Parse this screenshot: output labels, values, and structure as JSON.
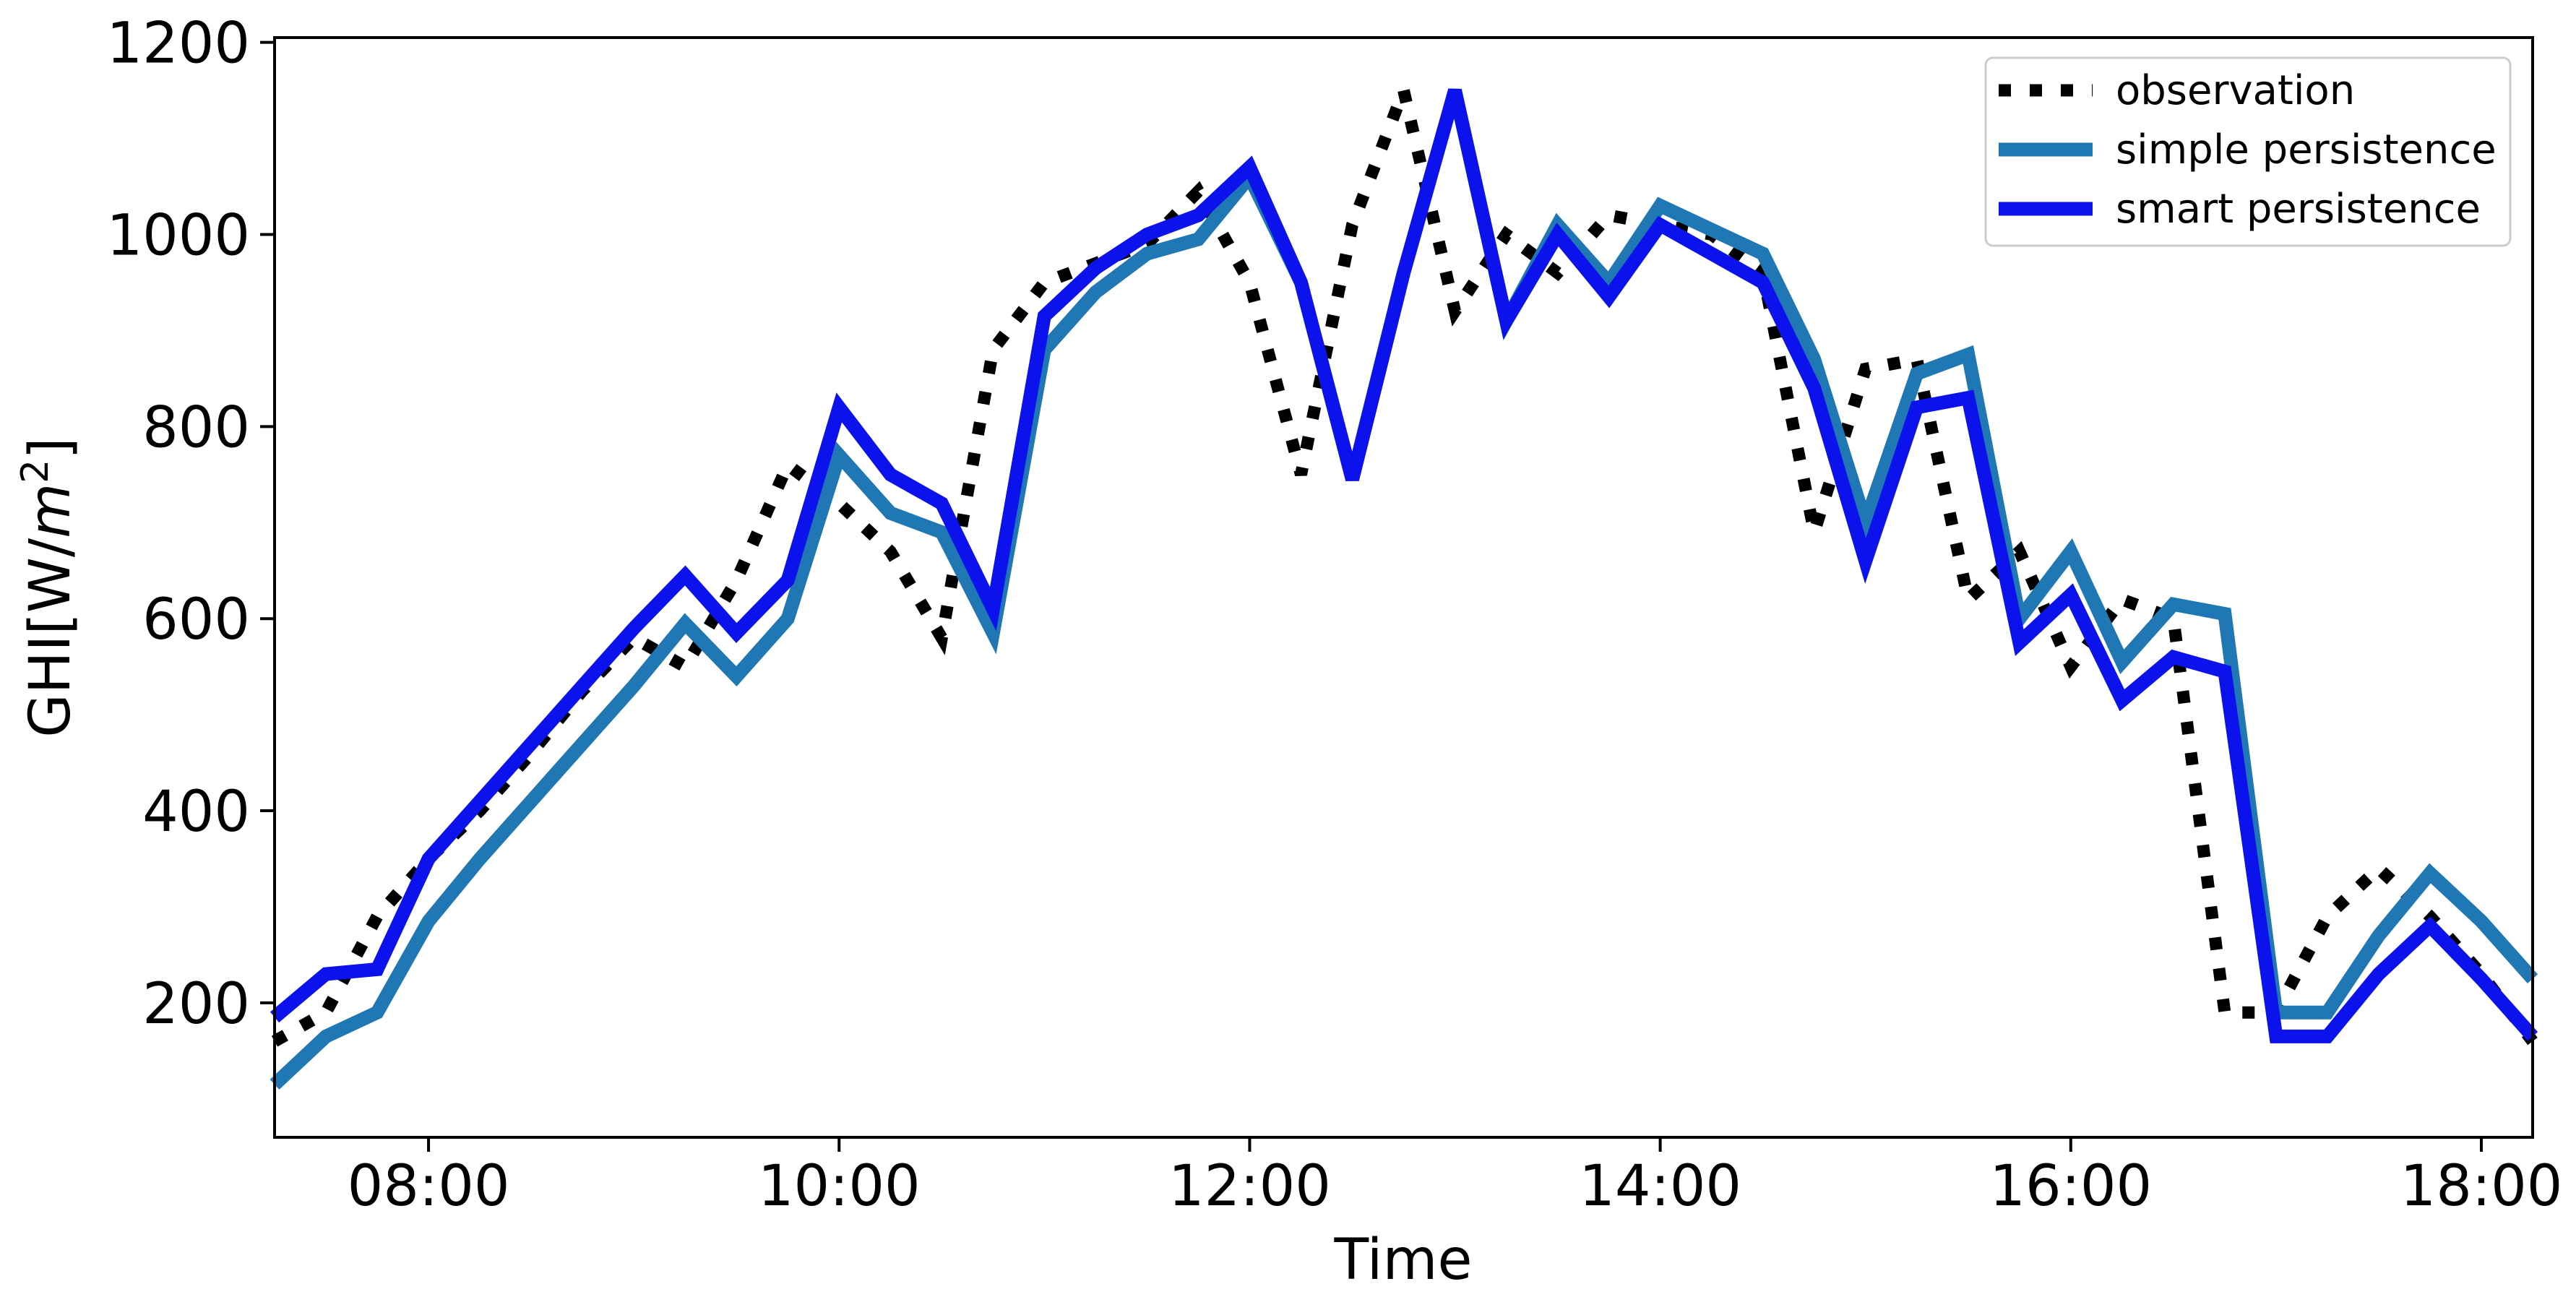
{
  "chart_data": {
    "type": "line",
    "xlabel": "Time",
    "ylabel": "GHI[W/m²]",
    "ylabel_parts": {
      "base": "GHI[W/",
      "italic": "m",
      "sup": "2",
      "close": "]"
    },
    "xlim": [
      "07:15",
      "18:15"
    ],
    "ylim": [
      60,
      1205
    ],
    "x_ticks": [
      "08:00",
      "10:00",
      "12:00",
      "14:00",
      "16:00",
      "18:00"
    ],
    "y_ticks": [
      200,
      400,
      600,
      800,
      1000,
      1200
    ],
    "x": [
      "07:15",
      "07:30",
      "07:45",
      "08:00",
      "08:15",
      "08:30",
      "08:45",
      "09:00",
      "09:15",
      "09:30",
      "09:45",
      "10:00",
      "10:15",
      "10:30",
      "10:45",
      "11:00",
      "11:15",
      "11:30",
      "11:45",
      "12:00",
      "12:15",
      "12:30",
      "12:45",
      "13:00",
      "13:15",
      "13:30",
      "13:45",
      "14:00",
      "14:15",
      "14:30",
      "14:45",
      "15:00",
      "15:15",
      "15:30",
      "15:45",
      "16:00",
      "16:15",
      "16:30",
      "16:45",
      "17:00",
      "17:15",
      "17:30",
      "17:45",
      "18:00",
      "18:15"
    ],
    "grid": false,
    "legend_position": "upper right",
    "series": [
      {
        "name": "observation",
        "style": "dotted",
        "color": "#000000",
        "values": [
          160,
          190,
          290,
          350,
          400,
          460,
          525,
          580,
          550,
          640,
          760,
          720,
          670,
          580,
          880,
          950,
          970,
          990,
          1045,
          950,
          750,
          1010,
          1150,
          920,
          1000,
          960,
          1020,
          1010,
          1000,
          960,
          690,
          860,
          870,
          620,
          670,
          550,
          620,
          600,
          190,
          190,
          290,
          340,
          290,
          230,
          160
        ]
      },
      {
        "name": "simple persistence",
        "style": "solid",
        "color": "#1f77b4",
        "values": [
          115,
          165,
          190,
          285,
          350,
          410,
          470,
          530,
          595,
          540,
          600,
          770,
          710,
          690,
          585,
          880,
          940,
          980,
          995,
          1060,
          950,
          745,
          960,
          1150,
          910,
          1010,
          950,
          1030,
          1005,
          980,
          870,
          700,
          855,
          875,
          600,
          670,
          555,
          615,
          605,
          190,
          190,
          270,
          335,
          285,
          225
        ]
      },
      {
        "name": "smart persistence",
        "style": "solid",
        "color": "#0c12ec",
        "values": [
          185,
          230,
          235,
          350,
          410,
          470,
          530,
          590,
          645,
          585,
          640,
          820,
          750,
          720,
          610,
          915,
          965,
          1000,
          1020,
          1070,
          950,
          745,
          960,
          1150,
          910,
          1000,
          935,
          1010,
          980,
          950,
          840,
          660,
          820,
          830,
          575,
          625,
          515,
          560,
          545,
          165,
          165,
          230,
          280,
          225,
          165
        ]
      }
    ]
  }
}
